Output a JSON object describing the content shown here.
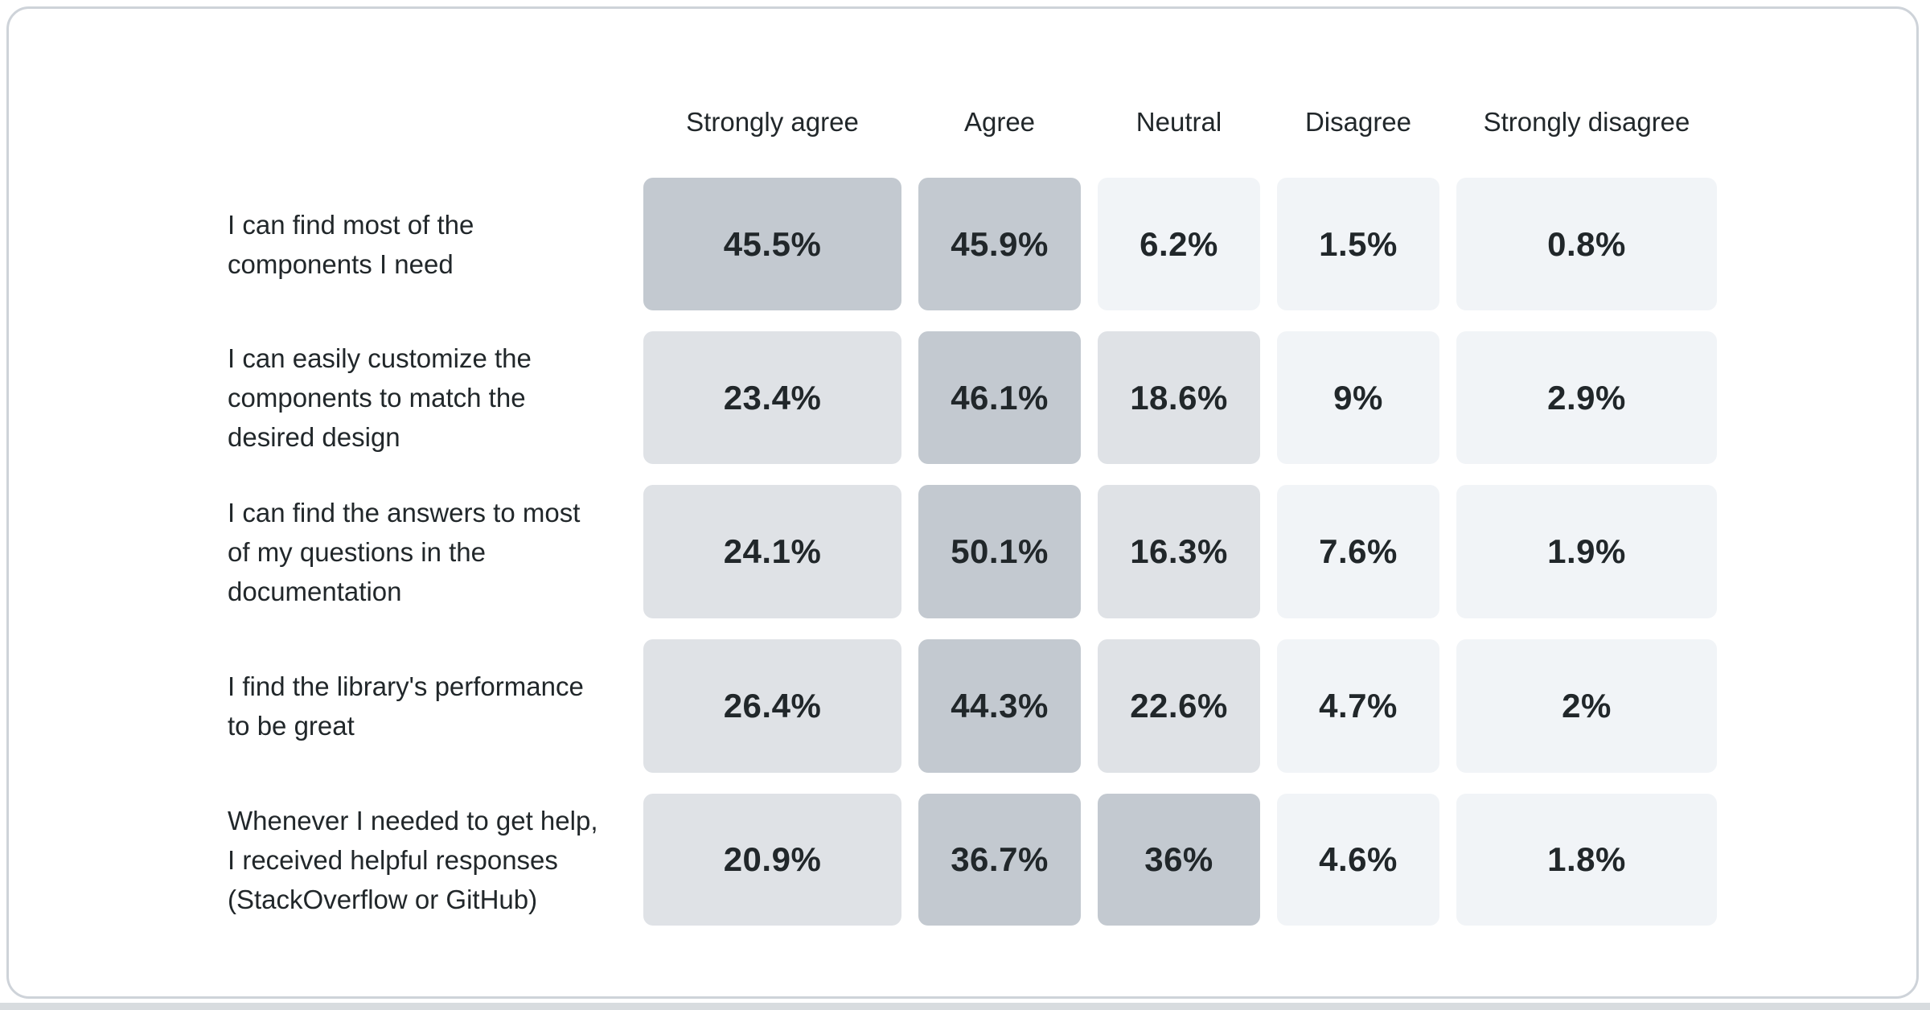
{
  "page": {
    "background": "#ffffff",
    "card_border_color": "#ced3d9",
    "card_background": "#ffffff",
    "bottom_bar_color": "#d8dcdf",
    "text_color": "#21272a"
  },
  "heatmap": {
    "colors": {
      "high": "#c3c9d0",
      "medium": "#dfe2e6",
      "low": "#f1f4f7"
    },
    "thresholds": {
      "high_min": 30,
      "medium_min": 10
    }
  },
  "table": {
    "columns": [
      "Strongly agree",
      "Agree",
      "Neutral",
      "Disagree",
      "Strongly disagree"
    ],
    "rows": [
      {
        "label": "I can find most of the\ncomponents I need",
        "cells": [
          {
            "display": "45.5%",
            "value": 45.5
          },
          {
            "display": "45.9%",
            "value": 45.9
          },
          {
            "display": "6.2%",
            "value": 6.2
          },
          {
            "display": "1.5%",
            "value": 1.5
          },
          {
            "display": "0.8%",
            "value": 0.8
          }
        ]
      },
      {
        "label": "I can easily customize the\ncomponents to match the\ndesired design",
        "cells": [
          {
            "display": "23.4%",
            "value": 23.4
          },
          {
            "display": "46.1%",
            "value": 46.1
          },
          {
            "display": "18.6%",
            "value": 18.6
          },
          {
            "display": "9%",
            "value": 9
          },
          {
            "display": "2.9%",
            "value": 2.9
          }
        ]
      },
      {
        "label": "I can find the answers to most\nof my questions in the\ndocumentation",
        "cells": [
          {
            "display": "24.1%",
            "value": 24.1
          },
          {
            "display": "50.1%",
            "value": 50.1
          },
          {
            "display": "16.3%",
            "value": 16.3
          },
          {
            "display": "7.6%",
            "value": 7.6
          },
          {
            "display": "1.9%",
            "value": 1.9
          }
        ]
      },
      {
        "label": "I find the library's performance\nto be great",
        "cells": [
          {
            "display": "26.4%",
            "value": 26.4
          },
          {
            "display": "44.3%",
            "value": 44.3
          },
          {
            "display": "22.6%",
            "value": 22.6
          },
          {
            "display": "4.7%",
            "value": 4.7
          },
          {
            "display": "2%",
            "value": 2
          }
        ]
      },
      {
        "label": "Whenever I needed to get help,\nI received helpful responses\n(StackOverflow or GitHub)",
        "cells": [
          {
            "display": "20.9%",
            "value": 20.9
          },
          {
            "display": "36.7%",
            "value": 36.7
          },
          {
            "display": "36%",
            "value": 36
          },
          {
            "display": "4.6%",
            "value": 4.6
          },
          {
            "display": "1.8%",
            "value": 1.8
          }
        ]
      }
    ]
  },
  "chart_data": {
    "type": "heatmap",
    "columns": [
      "Strongly agree",
      "Agree",
      "Neutral",
      "Disagree",
      "Strongly disagree"
    ],
    "rows": [
      "I can find most of the components I need",
      "I can easily customize the components to match the desired design",
      "I can find the answers to most of my questions in the documentation",
      "I find the library's performance to be great",
      "Whenever I needed to get help, I received helpful responses (StackOverflow or GitHub)"
    ],
    "values": [
      [
        45.5,
        45.9,
        6.2,
        1.5,
        0.8
      ],
      [
        23.4,
        46.1,
        18.6,
        9,
        2.9
      ],
      [
        24.1,
        50.1,
        16.3,
        7.6,
        1.9
      ],
      [
        26.4,
        44.3,
        22.6,
        4.7,
        2
      ],
      [
        20.9,
        36.7,
        36,
        4.6,
        1.8
      ]
    ],
    "value_unit": "%",
    "color_scale": {
      "low": "#f1f4f7",
      "medium": "#dfe2e6",
      "high": "#c3c9d0"
    },
    "legend_position": "none",
    "grid": false
  }
}
